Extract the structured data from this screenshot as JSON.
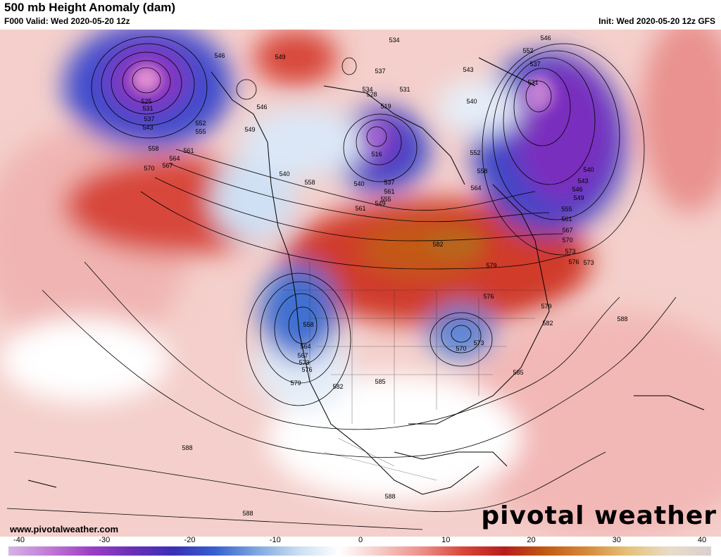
{
  "header": {
    "title": "500 mb Height Anomaly (dam)",
    "valid": "F000 Valid: Wed 2020-05-20 12z",
    "init": "Init: Wed 2020-05-20 12z GFS"
  },
  "footer": {
    "site": "www.pivotalweather.com",
    "brand": "pivotal weather"
  },
  "colorbar": {
    "ticks": [
      "-40",
      "-30",
      "-20",
      "-10",
      "0",
      "10",
      "20",
      "30",
      "40"
    ]
  },
  "contour_labels": [
    "546",
    "549",
    "525",
    "531",
    "537",
    "543",
    "552",
    "555",
    "558",
    "561",
    "564",
    "567",
    "570",
    "546",
    "549",
    "534",
    "537",
    "534",
    "528",
    "531",
    "519",
    "516",
    "540",
    "537",
    "543",
    "540",
    "546",
    "552",
    "537",
    "531",
    "540",
    "543",
    "546",
    "549",
    "555",
    "561",
    "567",
    "570",
    "573",
    "576",
    "552",
    "558",
    "564",
    "561",
    "558",
    "561",
    "555",
    "549",
    "540",
    "582",
    "579",
    "576",
    "573",
    "579",
    "582",
    "588",
    "585",
    "558",
    "564",
    "567",
    "573",
    "576",
    "579",
    "570",
    "573",
    "582",
    "585",
    "588",
    "588",
    "588"
  ],
  "colors": {
    "strong_positive": "#b71c1c",
    "peak_positive": "#c25a12",
    "mild_positive": "#f6c9c6",
    "neutral": "#ffffff",
    "mild_negative": "#c9def2",
    "moderate_negative": "#3f6fd0",
    "strong_negative": "#3527b8",
    "deep_negative": "#8a2fc0",
    "extreme_negative": "#e090d0"
  }
}
